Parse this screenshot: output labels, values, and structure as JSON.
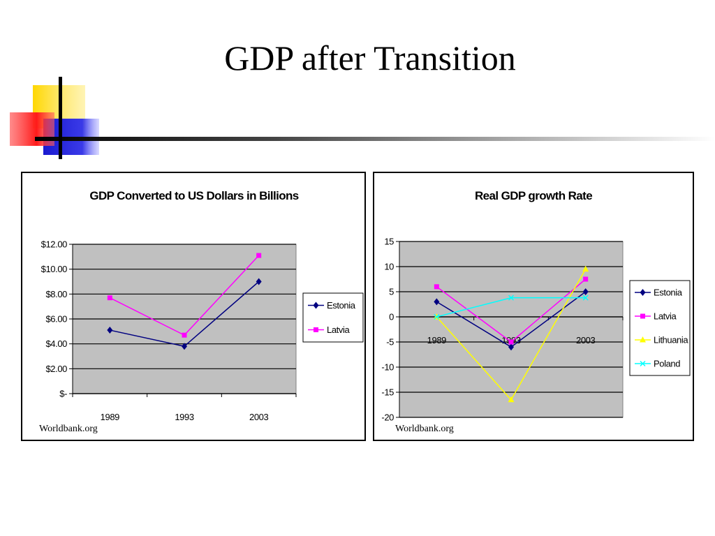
{
  "slide": {
    "title": "GDP after Transition"
  },
  "chart_data": [
    {
      "type": "line",
      "title": "GDP Converted to US Dollars in Billions",
      "xlabel": "",
      "ylabel": "",
      "categories": [
        "1989",
        "1993",
        "2003"
      ],
      "ylim": [
        0,
        12
      ],
      "yticks": [
        {
          "value": 0,
          "label": "$-"
        },
        {
          "value": 2,
          "label": "$2.00"
        },
        {
          "value": 4,
          "label": "$4.00"
        },
        {
          "value": 6,
          "label": "$6.00"
        },
        {
          "value": 8,
          "label": "$8.00"
        },
        {
          "value": 10,
          "label": "$10.00"
        },
        {
          "value": 12,
          "label": "$12.00"
        }
      ],
      "grid": true,
      "legend_position": "right",
      "plot_background": "#c0c0c0",
      "series": [
        {
          "name": "Estonia",
          "values": [
            5.1,
            3.8,
            9.0
          ],
          "color": "#000080",
          "marker": "diamond"
        },
        {
          "name": "Latvia",
          "values": [
            7.7,
            4.7,
            11.1
          ],
          "color": "#ff00ff",
          "marker": "square"
        }
      ],
      "source": "Worldbank.org"
    },
    {
      "type": "line",
      "title": "Real GDP growth Rate",
      "xlabel": "",
      "ylabel": "",
      "categories": [
        "1989",
        "1993",
        "2003"
      ],
      "ylim": [
        -20,
        15
      ],
      "yticks": [
        {
          "value": -20,
          "label": "-20"
        },
        {
          "value": -15,
          "label": "-15"
        },
        {
          "value": -10,
          "label": "-10"
        },
        {
          "value": -5,
          "label": "-5"
        },
        {
          "value": 0,
          "label": "0"
        },
        {
          "value": 5,
          "label": "5"
        },
        {
          "value": 10,
          "label": "10"
        },
        {
          "value": 15,
          "label": "15"
        }
      ],
      "grid": true,
      "legend_position": "right",
      "plot_background": "#c0c0c0",
      "series": [
        {
          "name": "Estonia",
          "values": [
            3,
            -6,
            5
          ],
          "color": "#000080",
          "marker": "diamond"
        },
        {
          "name": "Latvia",
          "values": [
            6,
            -5,
            7.5
          ],
          "color": "#ff00ff",
          "marker": "square"
        },
        {
          "name": "Lithuania",
          "values": [
            0,
            -16.5,
            9.5
          ],
          "color": "#ffff00",
          "marker": "triangle"
        },
        {
          "name": "Poland",
          "values": [
            0,
            3.8,
            3.8
          ],
          "color": "#00ffff",
          "marker": "x"
        }
      ],
      "source": "Worldbank.org"
    }
  ]
}
